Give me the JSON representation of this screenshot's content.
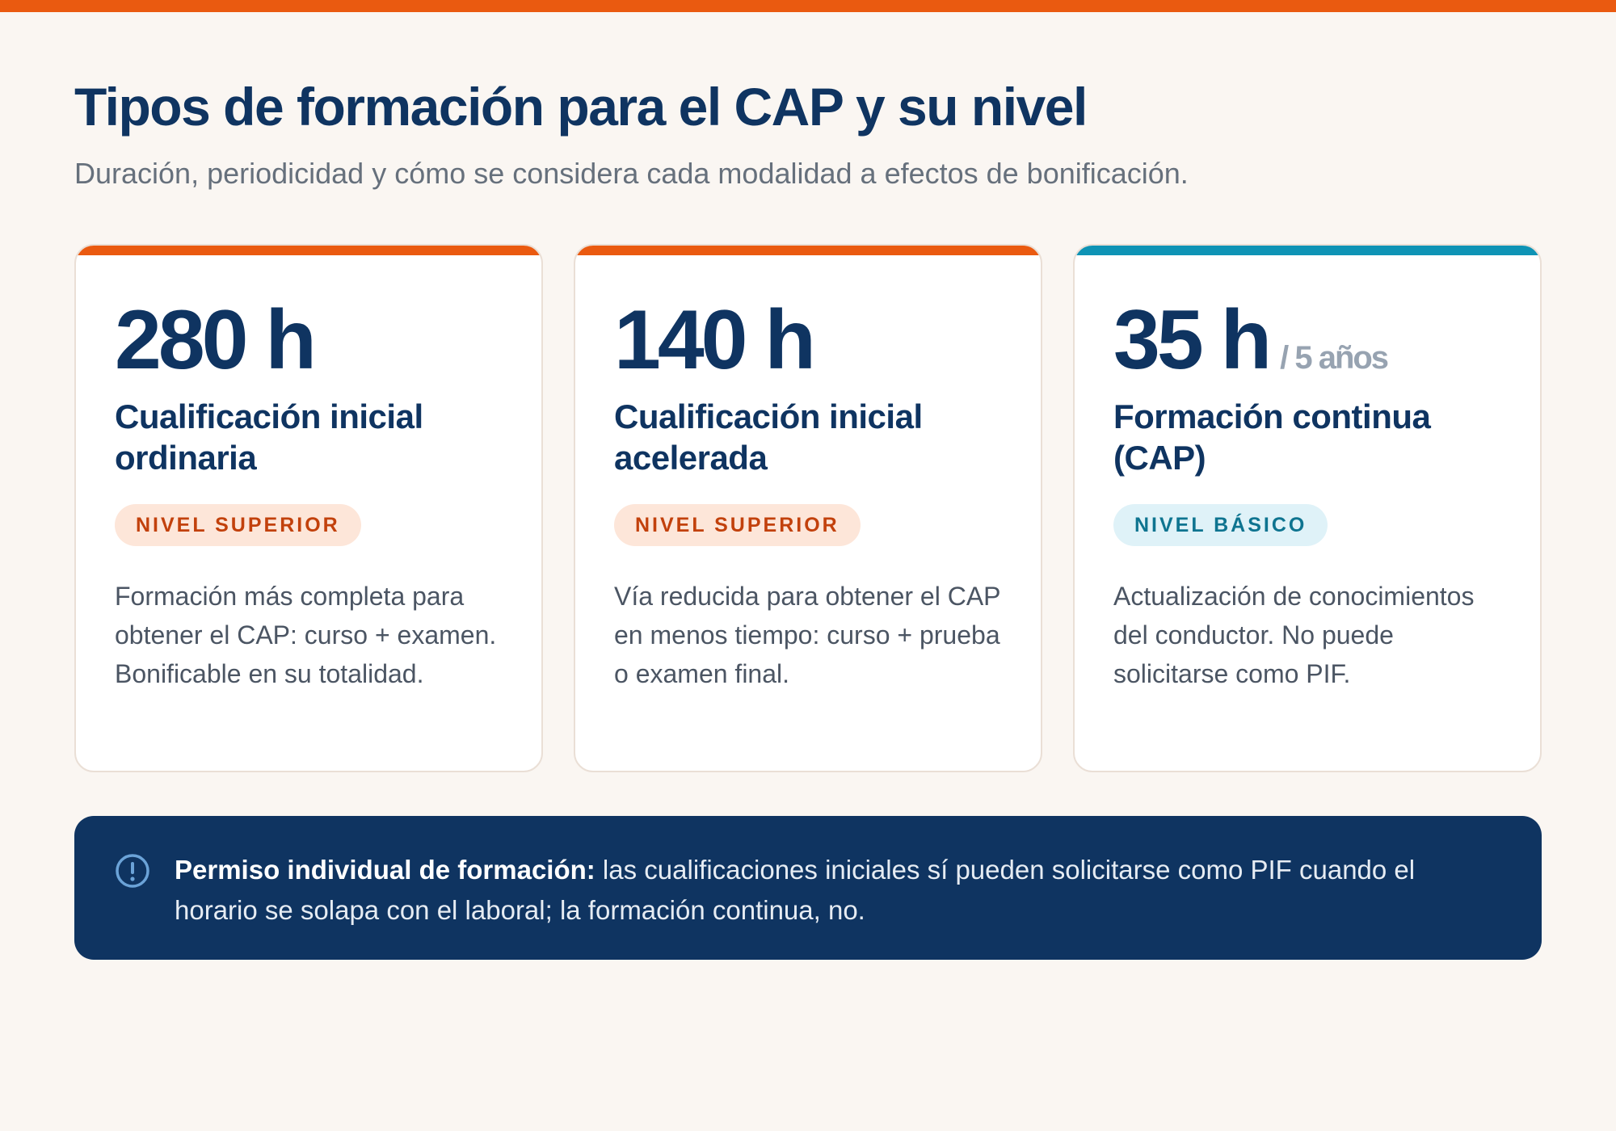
{
  "header": {
    "title": "Tipos de formación para el CAP y su nivel",
    "subtitle": "Duración, periodicidad y cómo se considera cada modalidad a efectos de bonificación."
  },
  "colors": {
    "top_bar": "#ea5a10",
    "accent_superior": "#ea5a10",
    "accent_basico": "#0e93b5",
    "navy": "#0f3461"
  },
  "cards": [
    {
      "hours": "280 h",
      "suffix": "",
      "title": "Cualificación inicial ordinaria",
      "badge": "NIVEL SUPERIOR",
      "description": "Formación más completa para obtener el CAP: curso + examen. Bonificable en su totalidad."
    },
    {
      "hours": "140 h",
      "suffix": "",
      "title": "Cualificación inicial acelerada",
      "badge": "NIVEL SUPERIOR",
      "description": "Vía reducida para obtener el CAP en menos tiempo: curso + prueba o examen final."
    },
    {
      "hours": "35 h",
      "suffix": "/ 5 años",
      "title": "Formación continua (CAP)",
      "badge": "NIVEL BÁSICO",
      "description": "Actualización de conocimientos del conductor. No puede solicitarse como PIF."
    }
  ],
  "notice": {
    "icon": "info-icon",
    "label": "Permiso individual de formación:",
    "text": " las cualificaciones iniciales sí pueden solicitarse como PIF cuando el horario se solapa con el laboral; la formación continua, no."
  }
}
